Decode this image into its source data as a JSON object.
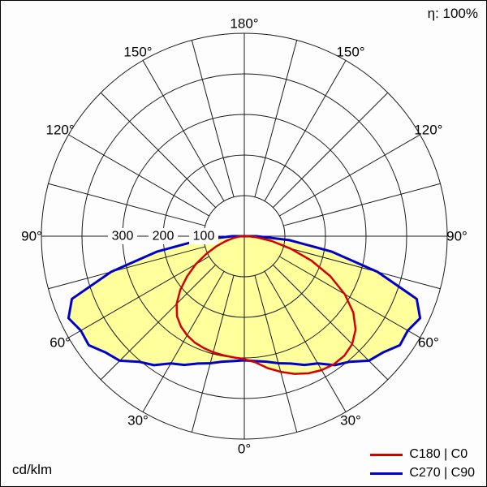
{
  "labels": {
    "efficiency": "η: 100%",
    "unit": "cd/klm",
    "degree_suffix": "°"
  },
  "legend": [
    {
      "label": "C180 | C0",
      "color": "#d40000"
    },
    {
      "label": "C270 | C90",
      "color": "#0000cd"
    }
  ],
  "chart_data": {
    "type": "polar",
    "subtype": "luminous-intensity-distribution",
    "unit": "cd/klm",
    "efficiency_percent": 100,
    "angle_ticks_deg": [
      0,
      30,
      60,
      90,
      120,
      150,
      180
    ],
    "angle_grid_step_deg": 15,
    "radial_ticks": [
      100,
      200,
      300
    ],
    "radial_grid": [
      100,
      200,
      300,
      400,
      500
    ],
    "rmax": 500,
    "fill_color": "#ffff9c",
    "grid_color": "#1a1a1a",
    "series": [
      {
        "name": "C180 | C0",
        "color": "#d40000",
        "width": 2.5,
        "points": [
          [
            -90,
            6
          ],
          [
            -85,
            14
          ],
          [
            -80,
            28
          ],
          [
            -75,
            48
          ],
          [
            -70,
            74
          ],
          [
            -65,
            104
          ],
          [
            -60,
            138
          ],
          [
            -55,
            172
          ],
          [
            -50,
            206
          ],
          [
            -45,
            236
          ],
          [
            -40,
            258
          ],
          [
            -35,
            272
          ],
          [
            -30,
            282
          ],
          [
            -25,
            289
          ],
          [
            -20,
            293
          ],
          [
            -15,
            296
          ],
          [
            -10,
            298
          ],
          [
            -5,
            300
          ],
          [
            0,
            303
          ],
          [
            5,
            312
          ],
          [
            10,
            330
          ],
          [
            15,
            346
          ],
          [
            20,
            361
          ],
          [
            25,
            373
          ],
          [
            30,
            381
          ],
          [
            35,
            385
          ],
          [
            40,
            384
          ],
          [
            45,
            376
          ],
          [
            50,
            358
          ],
          [
            55,
            328
          ],
          [
            60,
            286
          ],
          [
            65,
            234
          ],
          [
            70,
            176
          ],
          [
            75,
            118
          ],
          [
            80,
            68
          ],
          [
            85,
            30
          ],
          [
            90,
            8
          ]
        ]
      },
      {
        "name": "C270 | C90",
        "color": "#0000cd",
        "width": 3,
        "points": [
          [
            -90,
            30
          ],
          [
            -85,
            112
          ],
          [
            -80,
            218
          ],
          [
            -75,
            340
          ],
          [
            -70,
            452
          ],
          [
            -65,
            478
          ],
          [
            -60,
            465
          ],
          [
            -55,
            468
          ],
          [
            -50,
            446
          ],
          [
            -45,
            434
          ],
          [
            -40,
            404
          ],
          [
            -35,
            388
          ],
          [
            -30,
            362
          ],
          [
            -25,
            350
          ],
          [
            -20,
            334
          ],
          [
            -15,
            324
          ],
          [
            -10,
            314
          ],
          [
            -5,
            309
          ],
          [
            0,
            306
          ],
          [
            5,
            309
          ],
          [
            10,
            314
          ],
          [
            15,
            324
          ],
          [
            20,
            334
          ],
          [
            25,
            350
          ],
          [
            30,
            362
          ],
          [
            35,
            388
          ],
          [
            40,
            404
          ],
          [
            45,
            434
          ],
          [
            50,
            446
          ],
          [
            55,
            468
          ],
          [
            60,
            465
          ],
          [
            65,
            478
          ],
          [
            70,
            452
          ],
          [
            75,
            340
          ],
          [
            80,
            218
          ],
          [
            85,
            112
          ],
          [
            90,
            30
          ]
        ]
      }
    ]
  }
}
